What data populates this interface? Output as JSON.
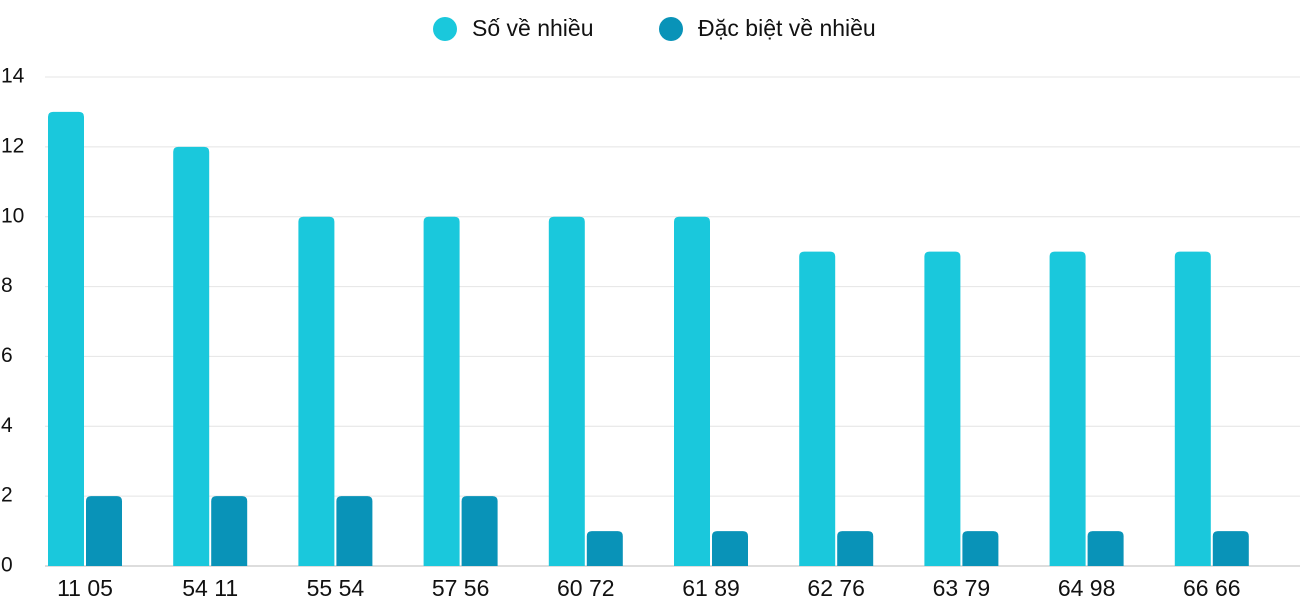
{
  "chart_data": {
    "type": "bar",
    "categories": [
      "11 05",
      "54 11",
      "55 54",
      "57 56",
      "60 72",
      "61 89",
      "62 76",
      "63 79",
      "64 98",
      "66 66"
    ],
    "series": [
      {
        "name": "Số về nhiều",
        "color": "#1ac8dc",
        "values": [
          13,
          12,
          10,
          10,
          10,
          10,
          9,
          9,
          9,
          9
        ]
      },
      {
        "name": "Đặc biệt về nhiều",
        "color": "#0993b8",
        "values": [
          2,
          2,
          2,
          2,
          1,
          1,
          1,
          1,
          1,
          1
        ]
      }
    ],
    "ylim": [
      0,
      14
    ],
    "yticks": [
      0,
      2,
      4,
      6,
      8,
      10,
      12,
      14
    ],
    "grid": true,
    "legend": "top"
  }
}
